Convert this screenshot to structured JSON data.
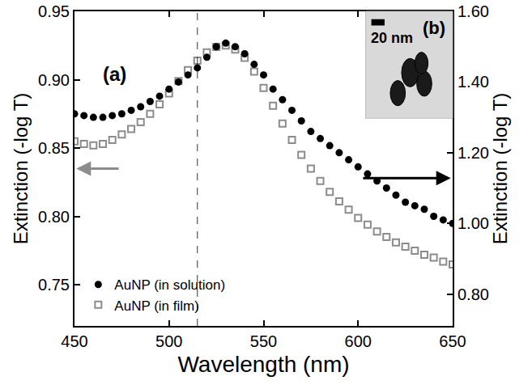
{
  "chart_data": {
    "type": "scatter",
    "x_label": "Wavelength (nm)",
    "y_label": "Extinction (-log T)",
    "y2_label": "Extinction (-log T)",
    "x": [
      450,
      455,
      460,
      465,
      470,
      475,
      480,
      485,
      490,
      495,
      500,
      505,
      510,
      515,
      520,
      525,
      530,
      535,
      540,
      545,
      550,
      555,
      560,
      565,
      570,
      575,
      580,
      585,
      590,
      595,
      600,
      605,
      610,
      615,
      620,
      625,
      630,
      635,
      640,
      645,
      650
    ],
    "series": [
      {
        "name": "AuNP (in solution)",
        "color": "#000000",
        "marker": "circle",
        "axis": "y2",
        "values": [
          1.31,
          1.305,
          1.3,
          1.3,
          1.305,
          1.31,
          1.32,
          1.33,
          1.345,
          1.36,
          1.38,
          1.4,
          1.42,
          1.44,
          1.47,
          1.5,
          1.51,
          1.5,
          1.48,
          1.45,
          1.42,
          1.38,
          1.35,
          1.32,
          1.29,
          1.26,
          1.24,
          1.22,
          1.2,
          1.18,
          1.16,
          1.14,
          1.12,
          1.1,
          1.08,
          1.06,
          1.05,
          1.04,
          1.02,
          1.01,
          1.0
        ]
      },
      {
        "name": "AuNP (in film)",
        "color": "#8c8c8c",
        "marker": "square-open",
        "axis": "y",
        "values": [
          0.855,
          0.853,
          0.852,
          0.853,
          0.856,
          0.86,
          0.864,
          0.869,
          0.875,
          0.882,
          0.89,
          0.899,
          0.907,
          0.914,
          0.92,
          0.924,
          0.925,
          0.922,
          0.916,
          0.906,
          0.894,
          0.881,
          0.868,
          0.856,
          0.845,
          0.835,
          0.826,
          0.818,
          0.811,
          0.805,
          0.799,
          0.794,
          0.789,
          0.785,
          0.781,
          0.778,
          0.775,
          0.772,
          0.77,
          0.767,
          0.765
        ]
      }
    ],
    "xlim": [
      450,
      650
    ],
    "xticks": [
      450,
      500,
      550,
      600,
      650
    ],
    "ylim": [
      0.72,
      0.95
    ],
    "yticks": [
      0.75,
      {
        "value": 0.8,
        "label": "0.80"
      },
      0.85,
      {
        "value": 0.9,
        "label": "0.90"
      },
      0.95
    ],
    "y2lim": [
      0.71,
      1.6
    ],
    "y2ticks": [
      {
        "value": 0.8,
        "label": "0.80"
      },
      {
        "value": 1.0,
        "label": "1.00"
      },
      {
        "value": 1.2,
        "label": "1.20"
      },
      {
        "value": 1.4,
        "label": "1.40"
      },
      {
        "value": 1.6,
        "label": "1.60"
      }
    ],
    "reference_lines": [
      {
        "x": 515,
        "line_style": "dash"
      }
    ],
    "annotations": [
      "(a)",
      "(b)",
      "20 nm"
    ],
    "grid": false,
    "legend": "lower left"
  }
}
